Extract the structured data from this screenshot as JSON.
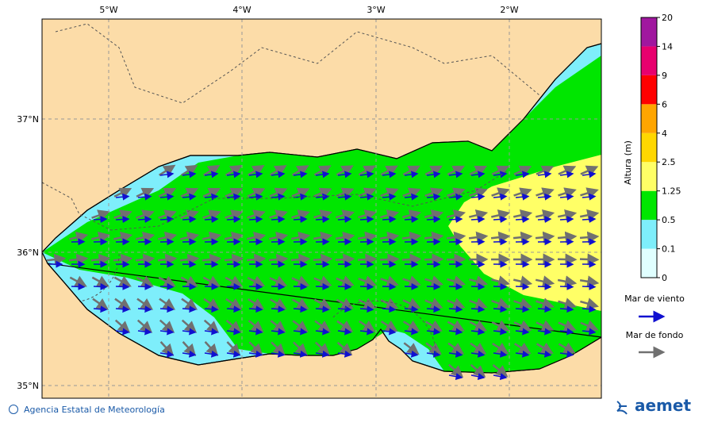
{
  "map": {
    "lon_ticks": [
      "5°W",
      "4°W",
      "3°W",
      "2°W"
    ],
    "lat_ticks": [
      "37°N",
      "36°N",
      "35°N"
    ]
  },
  "colorbar": {
    "label": "Altura (m)",
    "levels": [
      0,
      0.1,
      0.5,
      1.25,
      2.5,
      4,
      6,
      9,
      14,
      20
    ],
    "colors": [
      "#e0ffff",
      "#7eeefb",
      "#00e600",
      "#ffff66",
      "#ffd700",
      "#ffa500",
      "#ff0000",
      "#e8006e",
      "#a0179f"
    ]
  },
  "legend": {
    "wind_sea": "Mar de viento",
    "swell": "Mar de fondo"
  },
  "footer": {
    "credit": "Agencia Estatal de Meteorología",
    "logo": "aemet"
  }
}
